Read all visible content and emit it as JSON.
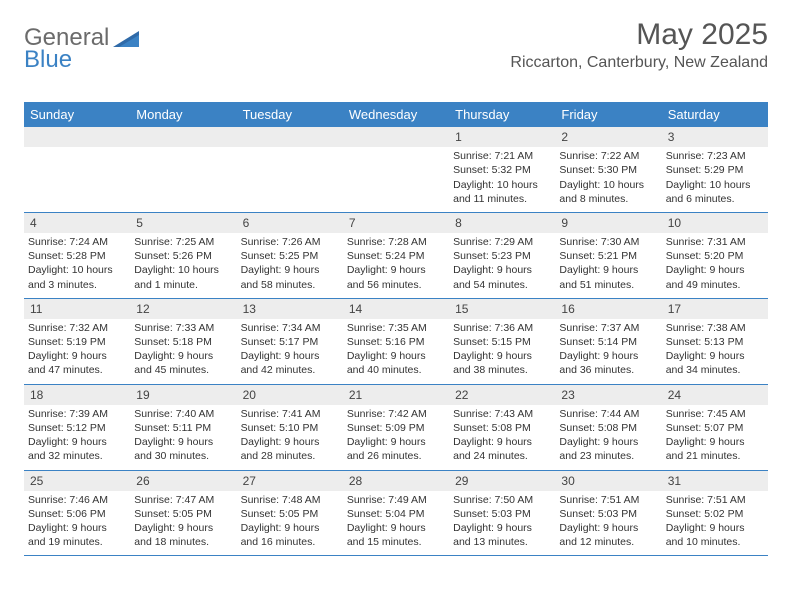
{
  "brand": {
    "part1": "General",
    "part2": "Blue"
  },
  "title": "May 2025",
  "location": "Riccarton, Canterbury, New Zealand",
  "colors": {
    "header_bg": "#3b82c4",
    "header_fg": "#ffffff",
    "daynum_bg": "#ededed",
    "rule": "#3b82c4",
    "text": "#333333",
    "title_text": "#555555"
  },
  "dow": [
    "Sunday",
    "Monday",
    "Tuesday",
    "Wednesday",
    "Thursday",
    "Friday",
    "Saturday"
  ],
  "weeks": [
    [
      null,
      null,
      null,
      null,
      {
        "n": "1",
        "sr": "Sunrise: 7:21 AM",
        "ss": "Sunset: 5:32 PM",
        "dl": "Daylight: 10 hours and 11 minutes."
      },
      {
        "n": "2",
        "sr": "Sunrise: 7:22 AM",
        "ss": "Sunset: 5:30 PM",
        "dl": "Daylight: 10 hours and 8 minutes."
      },
      {
        "n": "3",
        "sr": "Sunrise: 7:23 AM",
        "ss": "Sunset: 5:29 PM",
        "dl": "Daylight: 10 hours and 6 minutes."
      }
    ],
    [
      {
        "n": "4",
        "sr": "Sunrise: 7:24 AM",
        "ss": "Sunset: 5:28 PM",
        "dl": "Daylight: 10 hours and 3 minutes."
      },
      {
        "n": "5",
        "sr": "Sunrise: 7:25 AM",
        "ss": "Sunset: 5:26 PM",
        "dl": "Daylight: 10 hours and 1 minute."
      },
      {
        "n": "6",
        "sr": "Sunrise: 7:26 AM",
        "ss": "Sunset: 5:25 PM",
        "dl": "Daylight: 9 hours and 58 minutes."
      },
      {
        "n": "7",
        "sr": "Sunrise: 7:28 AM",
        "ss": "Sunset: 5:24 PM",
        "dl": "Daylight: 9 hours and 56 minutes."
      },
      {
        "n": "8",
        "sr": "Sunrise: 7:29 AM",
        "ss": "Sunset: 5:23 PM",
        "dl": "Daylight: 9 hours and 54 minutes."
      },
      {
        "n": "9",
        "sr": "Sunrise: 7:30 AM",
        "ss": "Sunset: 5:21 PM",
        "dl": "Daylight: 9 hours and 51 minutes."
      },
      {
        "n": "10",
        "sr": "Sunrise: 7:31 AM",
        "ss": "Sunset: 5:20 PM",
        "dl": "Daylight: 9 hours and 49 minutes."
      }
    ],
    [
      {
        "n": "11",
        "sr": "Sunrise: 7:32 AM",
        "ss": "Sunset: 5:19 PM",
        "dl": "Daylight: 9 hours and 47 minutes."
      },
      {
        "n": "12",
        "sr": "Sunrise: 7:33 AM",
        "ss": "Sunset: 5:18 PM",
        "dl": "Daylight: 9 hours and 45 minutes."
      },
      {
        "n": "13",
        "sr": "Sunrise: 7:34 AM",
        "ss": "Sunset: 5:17 PM",
        "dl": "Daylight: 9 hours and 42 minutes."
      },
      {
        "n": "14",
        "sr": "Sunrise: 7:35 AM",
        "ss": "Sunset: 5:16 PM",
        "dl": "Daylight: 9 hours and 40 minutes."
      },
      {
        "n": "15",
        "sr": "Sunrise: 7:36 AM",
        "ss": "Sunset: 5:15 PM",
        "dl": "Daylight: 9 hours and 38 minutes."
      },
      {
        "n": "16",
        "sr": "Sunrise: 7:37 AM",
        "ss": "Sunset: 5:14 PM",
        "dl": "Daylight: 9 hours and 36 minutes."
      },
      {
        "n": "17",
        "sr": "Sunrise: 7:38 AM",
        "ss": "Sunset: 5:13 PM",
        "dl": "Daylight: 9 hours and 34 minutes."
      }
    ],
    [
      {
        "n": "18",
        "sr": "Sunrise: 7:39 AM",
        "ss": "Sunset: 5:12 PM",
        "dl": "Daylight: 9 hours and 32 minutes."
      },
      {
        "n": "19",
        "sr": "Sunrise: 7:40 AM",
        "ss": "Sunset: 5:11 PM",
        "dl": "Daylight: 9 hours and 30 minutes."
      },
      {
        "n": "20",
        "sr": "Sunrise: 7:41 AM",
        "ss": "Sunset: 5:10 PM",
        "dl": "Daylight: 9 hours and 28 minutes."
      },
      {
        "n": "21",
        "sr": "Sunrise: 7:42 AM",
        "ss": "Sunset: 5:09 PM",
        "dl": "Daylight: 9 hours and 26 minutes."
      },
      {
        "n": "22",
        "sr": "Sunrise: 7:43 AM",
        "ss": "Sunset: 5:08 PM",
        "dl": "Daylight: 9 hours and 24 minutes."
      },
      {
        "n": "23",
        "sr": "Sunrise: 7:44 AM",
        "ss": "Sunset: 5:08 PM",
        "dl": "Daylight: 9 hours and 23 minutes."
      },
      {
        "n": "24",
        "sr": "Sunrise: 7:45 AM",
        "ss": "Sunset: 5:07 PM",
        "dl": "Daylight: 9 hours and 21 minutes."
      }
    ],
    [
      {
        "n": "25",
        "sr": "Sunrise: 7:46 AM",
        "ss": "Sunset: 5:06 PM",
        "dl": "Daylight: 9 hours and 19 minutes."
      },
      {
        "n": "26",
        "sr": "Sunrise: 7:47 AM",
        "ss": "Sunset: 5:05 PM",
        "dl": "Daylight: 9 hours and 18 minutes."
      },
      {
        "n": "27",
        "sr": "Sunrise: 7:48 AM",
        "ss": "Sunset: 5:05 PM",
        "dl": "Daylight: 9 hours and 16 minutes."
      },
      {
        "n": "28",
        "sr": "Sunrise: 7:49 AM",
        "ss": "Sunset: 5:04 PM",
        "dl": "Daylight: 9 hours and 15 minutes."
      },
      {
        "n": "29",
        "sr": "Sunrise: 7:50 AM",
        "ss": "Sunset: 5:03 PM",
        "dl": "Daylight: 9 hours and 13 minutes."
      },
      {
        "n": "30",
        "sr": "Sunrise: 7:51 AM",
        "ss": "Sunset: 5:03 PM",
        "dl": "Daylight: 9 hours and 12 minutes."
      },
      {
        "n": "31",
        "sr": "Sunrise: 7:51 AM",
        "ss": "Sunset: 5:02 PM",
        "dl": "Daylight: 9 hours and 10 minutes."
      }
    ]
  ]
}
